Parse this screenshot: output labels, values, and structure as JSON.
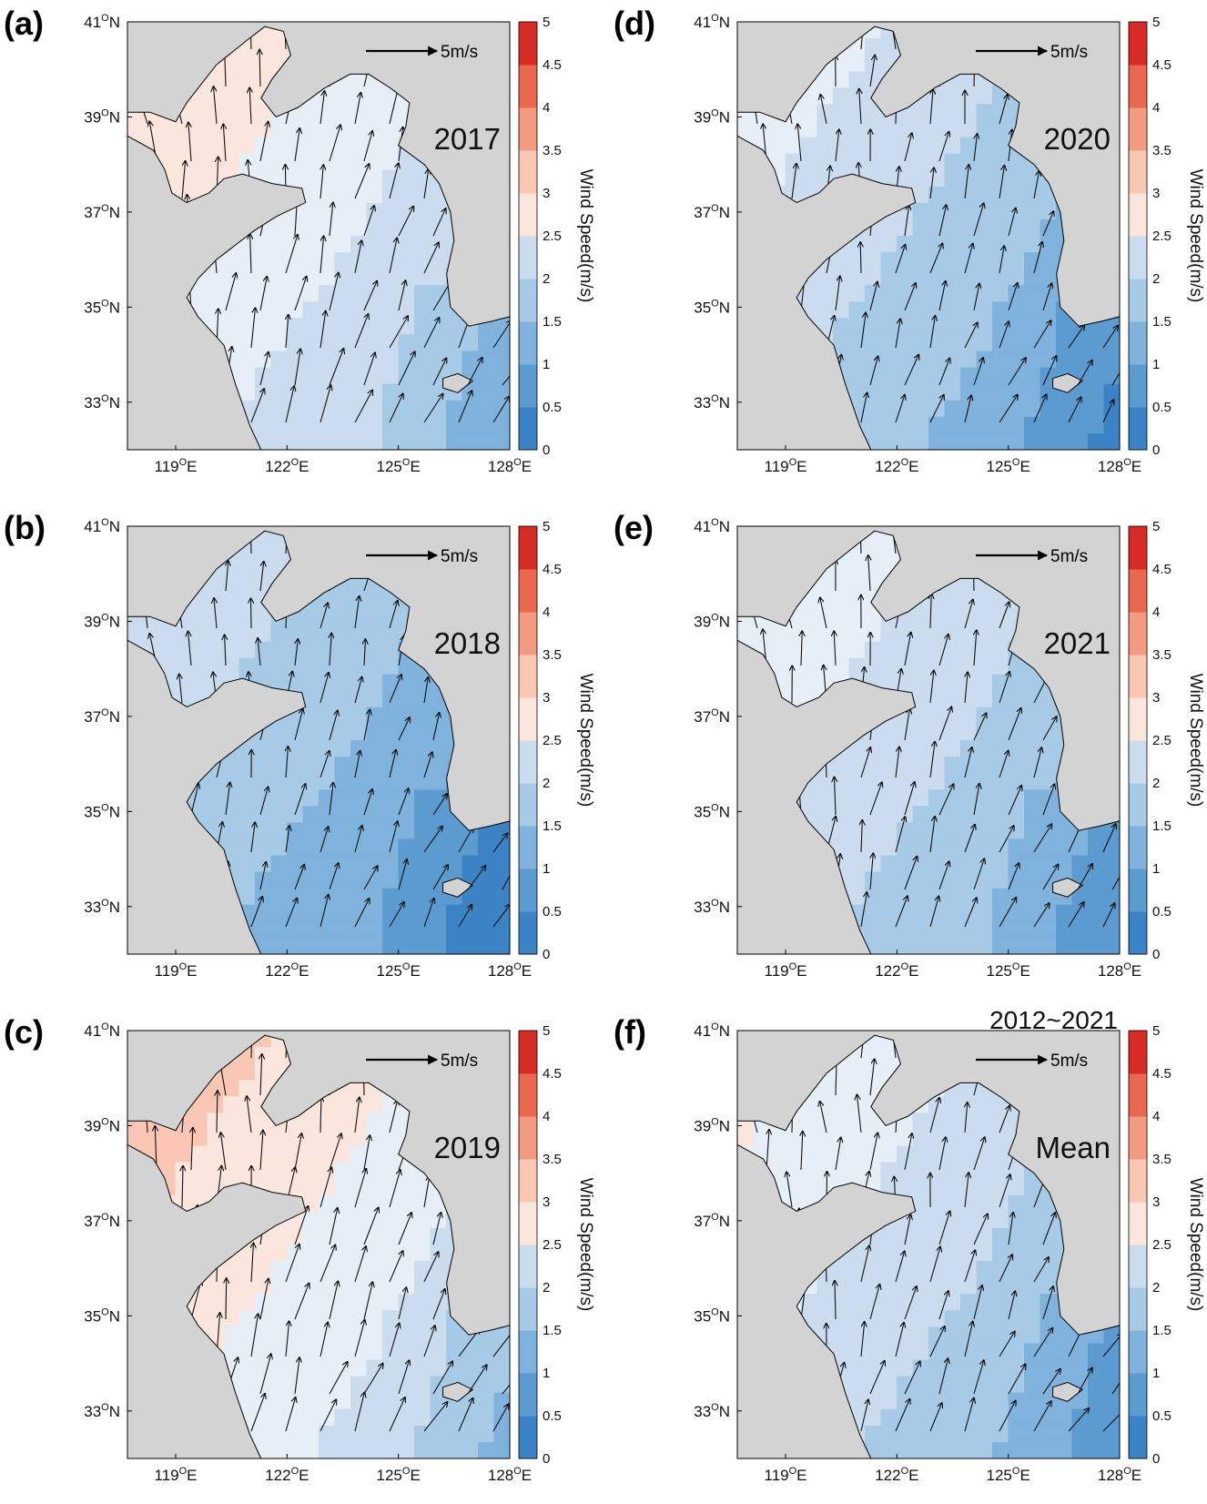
{
  "figure": {
    "top_label": "2012~2021",
    "colorbar": {
      "title": "Wind Speed(m/s)",
      "ticks": [
        "0",
        "0.5",
        "1",
        "1.5",
        "2",
        "2.5",
        "3",
        "3.5",
        "4",
        "4.5",
        "5"
      ],
      "colors": [
        "#3b83c4",
        "#5b9bd0",
        "#7fb2dc",
        "#a7cae7",
        "#cbdcef",
        "#e6eef8",
        "#fbe6dd",
        "#f9c7b4",
        "#f29b81",
        "#e8694f",
        "#d72c25"
      ]
    },
    "reference_vector": {
      "label": "5m/s",
      "speed": 5
    },
    "axes": {
      "lon_ticks": [
        {
          "deg": "119",
          "hem": "E"
        },
        {
          "deg": "122",
          "hem": "E"
        },
        {
          "deg": "125",
          "hem": "E"
        },
        {
          "deg": "128",
          "hem": "E"
        }
      ],
      "lat_ticks": [
        {
          "deg": "41",
          "hem": "N"
        },
        {
          "deg": "39",
          "hem": "N"
        },
        {
          "deg": "37",
          "hem": "N"
        },
        {
          "deg": "35",
          "hem": "N"
        },
        {
          "deg": "33",
          "hem": "N"
        }
      ],
      "degree_symbol": "O",
      "lon_range": [
        117.7,
        128.0
      ],
      "lat_range": [
        32.0,
        41.0
      ]
    },
    "colors": {
      "land": "#d3d3d3",
      "coast": "#000000"
    },
    "panels": [
      {
        "id": "a",
        "label": "(a)",
        "title": "2017",
        "mean_speed": 2.6
      },
      {
        "id": "d",
        "label": "(d)",
        "title": "2020",
        "mean_speed": 1.9
      },
      {
        "id": "b",
        "label": "(b)",
        "title": "2018",
        "mean_speed": 1.6
      },
      {
        "id": "e",
        "label": "(e)",
        "title": "2021",
        "mean_speed": 2.1
      },
      {
        "id": "c",
        "label": "(c)",
        "title": "2019",
        "mean_speed": 2.9
      },
      {
        "id": "f",
        "label": "(f)",
        "title": "Mean",
        "mean_speed": 2.2
      }
    ]
  }
}
